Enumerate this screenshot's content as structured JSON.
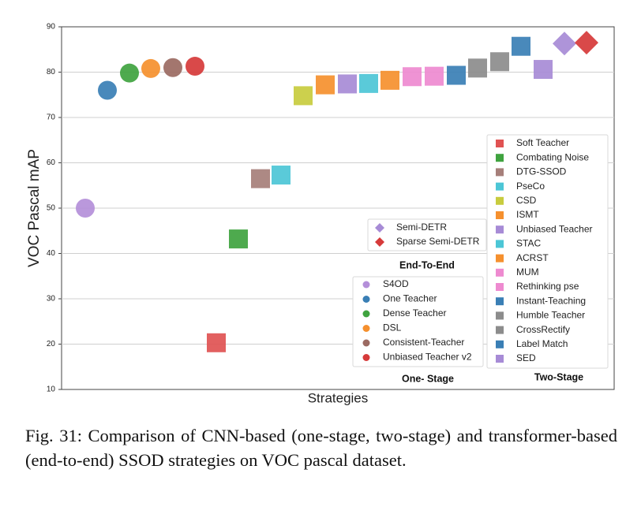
{
  "caption": "Fig. 31: Comparison of CNN-based (one-stage, two-stage) and transformer-based (end-to-end) SSOD strategies on VOC pascal dataset.",
  "chart_data": {
    "type": "scatter",
    "xlabel": "Strategies",
    "ylabel": "VOC Pascal mAP",
    "ylim": [
      10,
      90
    ],
    "yticks": [
      10,
      20,
      30,
      40,
      50,
      60,
      70,
      80,
      90
    ],
    "grid": true,
    "groups": [
      {
        "name": "One- Stage",
        "marker": "circle",
        "points": [
          {
            "label": "S4OD",
            "value": 50.0,
            "color": "#b48fd9"
          },
          {
            "label": "One Teacher",
            "value": 76.0,
            "color": "#3a7fb5"
          },
          {
            "label": "Dense Teacher",
            "value": 79.8,
            "color": "#3fa33f"
          },
          {
            "label": "DSL",
            "value": 80.8,
            "color": "#f5902e"
          },
          {
            "label": "Consistent-Teacher",
            "value": 81.0,
            "color": "#9b6a62"
          },
          {
            "label": "Unbiased Teacher v2",
            "value": 81.3,
            "color": "#d63a3a"
          }
        ]
      },
      {
        "name": "Two-Stage",
        "marker": "square",
        "points": [
          {
            "label": "Soft Teacher",
            "value": 20.3,
            "color": "#e05252"
          },
          {
            "label": "Combating Noise",
            "value": 43.2,
            "color": "#3fa33f"
          },
          {
            "label": "DTG-SSOD",
            "value": 56.5,
            "color": "#a67f7a"
          },
          {
            "label": "PseCo",
            "value": 57.3,
            "color": "#4cc6d6"
          },
          {
            "label": "CSD",
            "value": 74.8,
            "color": "#c8cc3e"
          },
          {
            "label": "ISMT",
            "value": 77.2,
            "color": "#f5902e"
          },
          {
            "label": "Unbiased Teacher",
            "value": 77.4,
            "color": "#a78bd6"
          },
          {
            "label": "STAC",
            "value": 77.5,
            "color": "#4cc6d6"
          },
          {
            "label": "ACRST",
            "value": 78.2,
            "color": "#f5902e"
          },
          {
            "label": "MUM",
            "value": 79.0,
            "color": "#ee8ad0"
          },
          {
            "label": "Rethinking pse",
            "value": 79.1,
            "color": "#ee8ad0"
          },
          {
            "label": "Instant-Teaching",
            "value": 79.3,
            "color": "#3a7fb5"
          },
          {
            "label": "Humble Teacher",
            "value": 80.9,
            "color": "#8c8c8c"
          },
          {
            "label": "CrossRectify",
            "value": 82.3,
            "color": "#8c8c8c"
          },
          {
            "label": "Label Match",
            "value": 85.7,
            "color": "#3a7fb5"
          },
          {
            "label": "SED",
            "value": 80.6,
            "color": "#a78bd6"
          }
        ]
      },
      {
        "name": "End-To-End",
        "marker": "diamond",
        "points": [
          {
            "label": "Semi-DETR",
            "value": 86.3,
            "color": "#a78bd6"
          },
          {
            "label": "Sparse Semi-DETR",
            "value": 86.5,
            "color": "#d63a3a"
          }
        ]
      }
    ]
  }
}
